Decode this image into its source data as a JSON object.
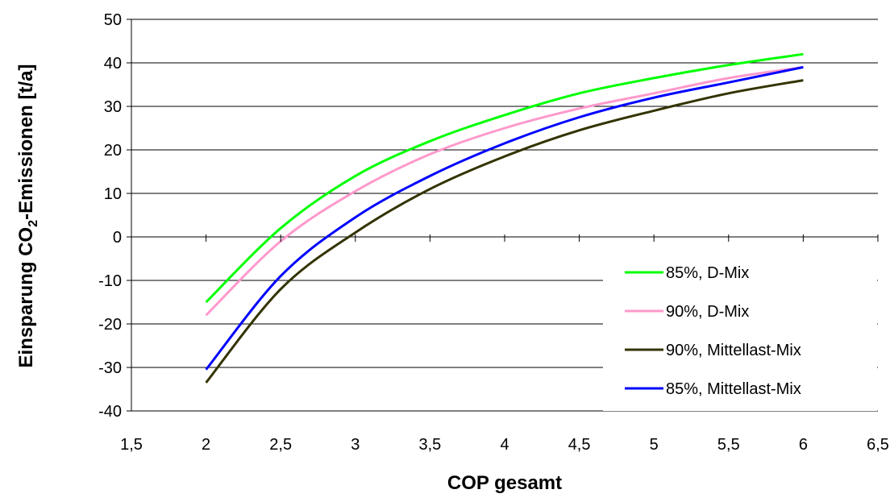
{
  "chart_data": {
    "type": "line",
    "title": "",
    "xlabel": "COP gesamt",
    "ylabel_parts": {
      "pre": "Einsparung CO",
      "sub": "2",
      "post": "-Emissionen [t/a]"
    },
    "xlim": [
      1.5,
      6.5
    ],
    "ylim": [
      -40,
      50
    ],
    "x_ticks": [
      "1,5",
      "2",
      "2,5",
      "3",
      "3,5",
      "4",
      "4,5",
      "5",
      "5,5",
      "6",
      "6,5"
    ],
    "y_ticks": [
      "50",
      "40",
      "30",
      "20",
      "10",
      "0",
      "-10",
      "-20",
      "-30",
      "-40"
    ],
    "grid": "horizontal",
    "legend_position": "lower-right",
    "x": [
      2,
      2.5,
      3,
      3.5,
      4,
      4.5,
      5,
      5.5,
      6
    ],
    "series": [
      {
        "name": "85%, D-Mix",
        "color": "#00ff00",
        "values": [
          -15,
          2,
          14,
          22,
          28,
          33,
          36.5,
          39.5,
          42
        ]
      },
      {
        "name": "90%, D-Mix",
        "color": "#ff99cc",
        "values": [
          -18,
          -1,
          10.5,
          19,
          25,
          29.5,
          33,
          36.5,
          39
        ]
      },
      {
        "name": "90%, Mittellast-Mix",
        "color": "#333300",
        "values": [
          -33.5,
          -12,
          1,
          11,
          18.5,
          24.5,
          29,
          33,
          36
        ]
      },
      {
        "name": "85%, Mittellast-Mix",
        "color": "#0000ff",
        "values": [
          -30.5,
          -9,
          4.5,
          14,
          21.5,
          27.5,
          32,
          35.5,
          39
        ]
      }
    ]
  }
}
